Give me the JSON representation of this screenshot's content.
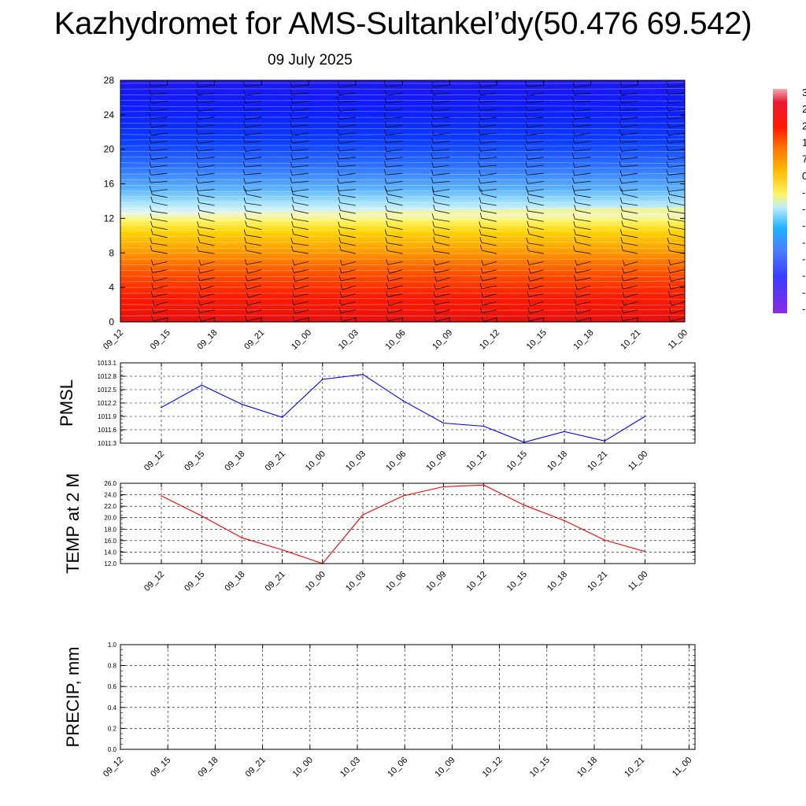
{
  "header": {
    "title": "Kazhydromet for AMS-Sultankel’dy(50.476 69.542)",
    "date": "09 July 2025"
  },
  "time_labels": [
    "09_12",
    "09_15",
    "09_18",
    "09_21",
    "10_00",
    "10_03",
    "10_06",
    "10_09",
    "10_12",
    "10_15",
    "10_18",
    "10_21",
    "11_00"
  ],
  "chart_data": [
    {
      "type": "heatmap",
      "x_ticks": [
        "09_12",
        "09_15",
        "09_18",
        "09_21",
        "10_00",
        "10_03",
        "10_06",
        "10_09",
        "10_12",
        "10_15",
        "10_18",
        "10_21",
        "11_00"
      ],
      "y_ticks": [
        0,
        4,
        8,
        12,
        16,
        20,
        24,
        28
      ],
      "ylim": [
        0,
        28
      ],
      "freezing_level_start": 12.2,
      "freezing_level_end": 13.0,
      "colorbar_visible_labels": [
        "3",
        "2",
        "2",
        "1",
        "7",
        "0",
        "-",
        "-",
        "-",
        "-",
        "-",
        "-",
        "-",
        "-"
      ],
      "overlay": "wind barbs"
    },
    {
      "type": "line",
      "ylabel": "PMSL",
      "x": [
        "09_12",
        "09_15",
        "09_18",
        "09_21",
        "10_00",
        "10_03",
        "10_06",
        "10_09",
        "10_12",
        "10_15",
        "10_18",
        "10_21",
        "11_00"
      ],
      "series": [
        {
          "values": [
            1012.1,
            1012.6,
            1012.17,
            1011.88,
            1012.73,
            1012.84,
            1012.25,
            1011.75,
            1011.68,
            1011.32,
            1011.56,
            1011.35,
            1011.9
          ]
        }
      ],
      "ylim": [
        1011.3,
        1013.1
      ],
      "y_ticks": [
        "1013.1",
        "1012.8",
        "1012.5",
        "1012.2",
        "1011.9",
        "1011.6",
        "1011.3"
      ],
      "color": "#0000ff",
      "grid": true
    },
    {
      "type": "line",
      "ylabel": "TEMP at 2 M",
      "x": [
        "09_12",
        "09_15",
        "09_18",
        "09_21",
        "10_00",
        "10_03",
        "10_06",
        "10_09",
        "10_12",
        "10_15",
        "10_18",
        "10_21",
        "11_00"
      ],
      "series": [
        {
          "values": [
            23.8,
            20.3,
            16.5,
            14.4,
            12.0,
            20.5,
            23.8,
            25.4,
            25.7,
            22.2,
            19.5,
            16.1,
            14.1
          ]
        }
      ],
      "ylim": [
        12.0,
        26.0
      ],
      "y_ticks": [
        "26.0",
        "24.0",
        "22.0",
        "20.0",
        "18.0",
        "16.0",
        "14.0",
        "12.0"
      ],
      "color": "#ff0000",
      "grid": true
    },
    {
      "type": "line",
      "ylabel": "PRECIP, mm",
      "x": [
        "09_12",
        "09_15",
        "09_18",
        "09_21",
        "10_00",
        "10_03",
        "10_06",
        "10_09",
        "10_12",
        "10_15",
        "10_18",
        "10_21",
        "11_00"
      ],
      "series": [
        {
          "values": [
            0,
            0,
            0,
            0,
            0,
            0,
            0,
            0,
            0,
            0,
            0,
            0,
            0
          ]
        }
      ],
      "ylim": [
        0.0,
        1.0
      ],
      "y_ticks": [
        "1.0",
        "0.8",
        "0.6",
        "0.4",
        "0.2",
        "0.0"
      ],
      "color": "#006400",
      "grid": true
    }
  ],
  "colors": {
    "pmsl_line": "#0000ff",
    "temp_line": "#ff0000",
    "precip_line": "#006400"
  }
}
